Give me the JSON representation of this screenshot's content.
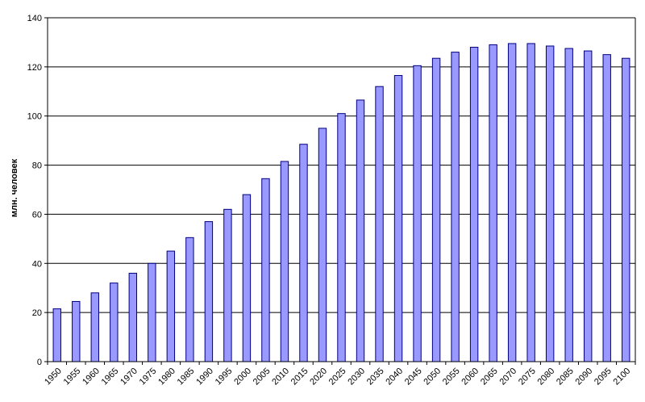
{
  "chart_data": {
    "type": "bar",
    "title": "",
    "xlabel": "",
    "ylabel": "млн. человек",
    "ylim": [
      0,
      140
    ],
    "yticks": [
      0,
      20,
      40,
      60,
      80,
      100,
      120,
      140
    ],
    "grid": true,
    "legend": "none",
    "bar_color": "#9999ff",
    "bar_edge_color": "#000080",
    "categories": [
      "1950",
      "1955",
      "1960",
      "1965",
      "1970",
      "1975",
      "1980",
      "1985",
      "1990",
      "1995",
      "2000",
      "2005",
      "2010",
      "2015",
      "2020",
      "2025",
      "2030",
      "2035",
      "2040",
      "2045",
      "2050",
      "2055",
      "2060",
      "2065",
      "2070",
      "2075",
      "2080",
      "2085",
      "2090",
      "2095",
      "2100"
    ],
    "values": [
      21.5,
      24.5,
      28,
      32,
      36,
      40,
      45,
      50.5,
      57,
      62,
      68,
      74.5,
      81.5,
      88.5,
      95,
      101,
      106.5,
      112,
      116.5,
      120.5,
      123.5,
      126,
      128,
      129,
      129.5,
      129.5,
      128.5,
      127.5,
      126.5,
      125,
      123.5
    ]
  }
}
